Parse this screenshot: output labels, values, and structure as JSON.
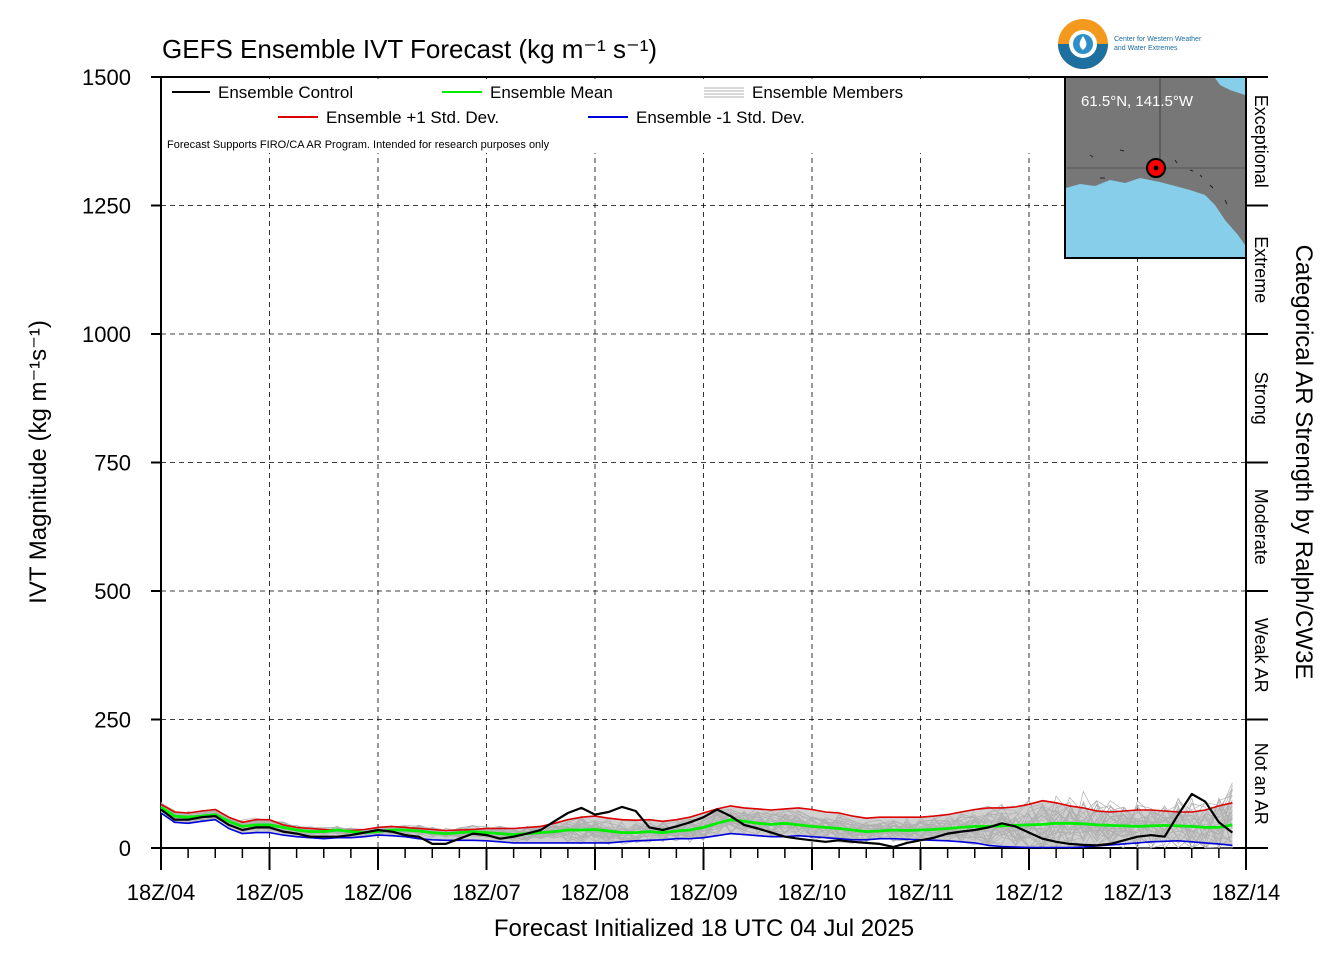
{
  "title": "GEFS Ensemble IVT Forecast (kg m⁻¹ s⁻¹)",
  "logo": {
    "line1": "Center for Western Weather",
    "line2": "and Water Extremes"
  },
  "note": "Forecast Supports FIRO/CA AR Program. Intended for research purposes only",
  "location": "61.5°N, 141.5°W",
  "colors": {
    "control": "#000000",
    "mean": "#00ee00",
    "plus_std": "#dd0000",
    "minus_std": "#0000dd",
    "members": "#b0b0b0",
    "spread": "#d0d0d0",
    "map_land": "#777777",
    "map_water": "#87ceeb"
  },
  "chart_data": {
    "type": "line",
    "title": "GEFS Ensemble IVT Forecast (kg m⁻¹ s⁻¹)",
    "xlabel": "Forecast Initialized 18 UTC 04 Jul 2025",
    "ylabel": "IVT Magnitude (kg m⁻¹s⁻¹)",
    "y2label": "Categorical AR Strength by Ralph/CW3E",
    "ylim": [
      0,
      1500
    ],
    "yticks": [
      0,
      250,
      500,
      750,
      1000,
      1250,
      1500
    ],
    "xlim": [
      0,
      10
    ],
    "x_ticks": [
      "18Z/04",
      "18Z/05",
      "18Z/06",
      "18Z/07",
      "18Z/08",
      "18Z/09",
      "18Z/10",
      "18Z/11",
      "18Z/12",
      "18Z/13",
      "18Z/14"
    ],
    "grid": true,
    "legend_position": "top-left",
    "categories_right": [
      {
        "label": "Not an AR",
        "range": [
          0,
          250
        ]
      },
      {
        "label": "Weak AR",
        "range": [
          250,
          500
        ]
      },
      {
        "label": "Moderate",
        "range": [
          500,
          750
        ]
      },
      {
        "label": "Strong",
        "range": [
          750,
          1000
        ]
      },
      {
        "label": "Extreme",
        "range": [
          1000,
          1250
        ]
      },
      {
        "label": "Exceptional",
        "range": [
          1250,
          1500
        ]
      }
    ],
    "time_step_days": 0.125,
    "series": [
      {
        "name": "Ensemble Control",
        "key": "control",
        "values": [
          75,
          55,
          55,
          60,
          62,
          45,
          35,
          40,
          40,
          32,
          28,
          22,
          22,
          22,
          25,
          30,
          35,
          32,
          25,
          22,
          8,
          8,
          18,
          28,
          25,
          18,
          22,
          28,
          35,
          52,
          68,
          78,
          65,
          70,
          80,
          72,
          40,
          35,
          42,
          50,
          60,
          75,
          62,
          45,
          38,
          30,
          22,
          18,
          15,
          12,
          15,
          12,
          10,
          8,
          2,
          10,
          15,
          20,
          28,
          32,
          35,
          40,
          48,
          42,
          30,
          18,
          12,
          8,
          6,
          5,
          8,
          15,
          22,
          25,
          22,
          65,
          105,
          90,
          50,
          30
        ]
      },
      {
        "name": "Ensemble Mean",
        "key": "mean",
        "values": [
          80,
          62,
          60,
          62,
          65,
          52,
          42,
          45,
          45,
          40,
          35,
          32,
          32,
          35,
          32,
          30,
          32,
          35,
          35,
          33,
          30,
          28,
          30,
          32,
          30,
          28,
          26,
          28,
          30,
          32,
          35,
          35,
          36,
          33,
          30,
          30,
          32,
          30,
          33,
          35,
          40,
          48,
          55,
          52,
          48,
          46,
          48,
          45,
          42,
          40,
          38,
          35,
          32,
          33,
          35,
          34,
          35,
          36,
          38,
          40,
          42,
          42,
          43,
          44,
          45,
          46,
          48,
          48,
          47,
          45,
          44,
          43,
          42,
          43,
          44,
          43,
          42,
          40,
          40,
          45
        ]
      },
      {
        "name": "Ensemble +1 Std. Dev.",
        "key": "plus_std",
        "values": [
          85,
          70,
          68,
          72,
          75,
          60,
          50,
          55,
          55,
          45,
          40,
          38,
          36,
          35,
          34,
          36,
          40,
          42,
          40,
          38,
          36,
          34,
          35,
          36,
          38,
          38,
          38,
          40,
          42,
          48,
          55,
          60,
          62,
          58,
          55,
          54,
          55,
          52,
          55,
          60,
          68,
          76,
          82,
          78,
          76,
          74,
          76,
          78,
          75,
          70,
          68,
          62,
          58,
          60,
          60,
          60,
          60,
          62,
          65,
          70,
          75,
          78,
          78,
          80,
          85,
          92,
          88,
          82,
          78,
          72,
          70,
          72,
          74,
          74,
          72,
          70,
          70,
          74,
          82,
          88
        ]
      },
      {
        "name": "Ensemble -1 Std. Dev.",
        "key": "minus_std",
        "values": [
          68,
          50,
          48,
          52,
          55,
          38,
          28,
          30,
          30,
          25,
          22,
          20,
          18,
          20,
          20,
          22,
          25,
          24,
          22,
          18,
          16,
          15,
          15,
          15,
          14,
          12,
          10,
          10,
          10,
          10,
          10,
          10,
          10,
          10,
          12,
          14,
          15,
          16,
          18,
          18,
          20,
          24,
          28,
          26,
          24,
          22,
          22,
          24,
          22,
          20,
          18,
          16,
          16,
          18,
          18,
          17,
          16,
          15,
          14,
          12,
          10,
          5,
          3,
          2,
          1,
          1,
          1,
          1,
          2,
          4,
          6,
          8,
          10,
          12,
          13,
          14,
          12,
          10,
          8,
          5
        ]
      }
    ],
    "members_count": 30
  }
}
